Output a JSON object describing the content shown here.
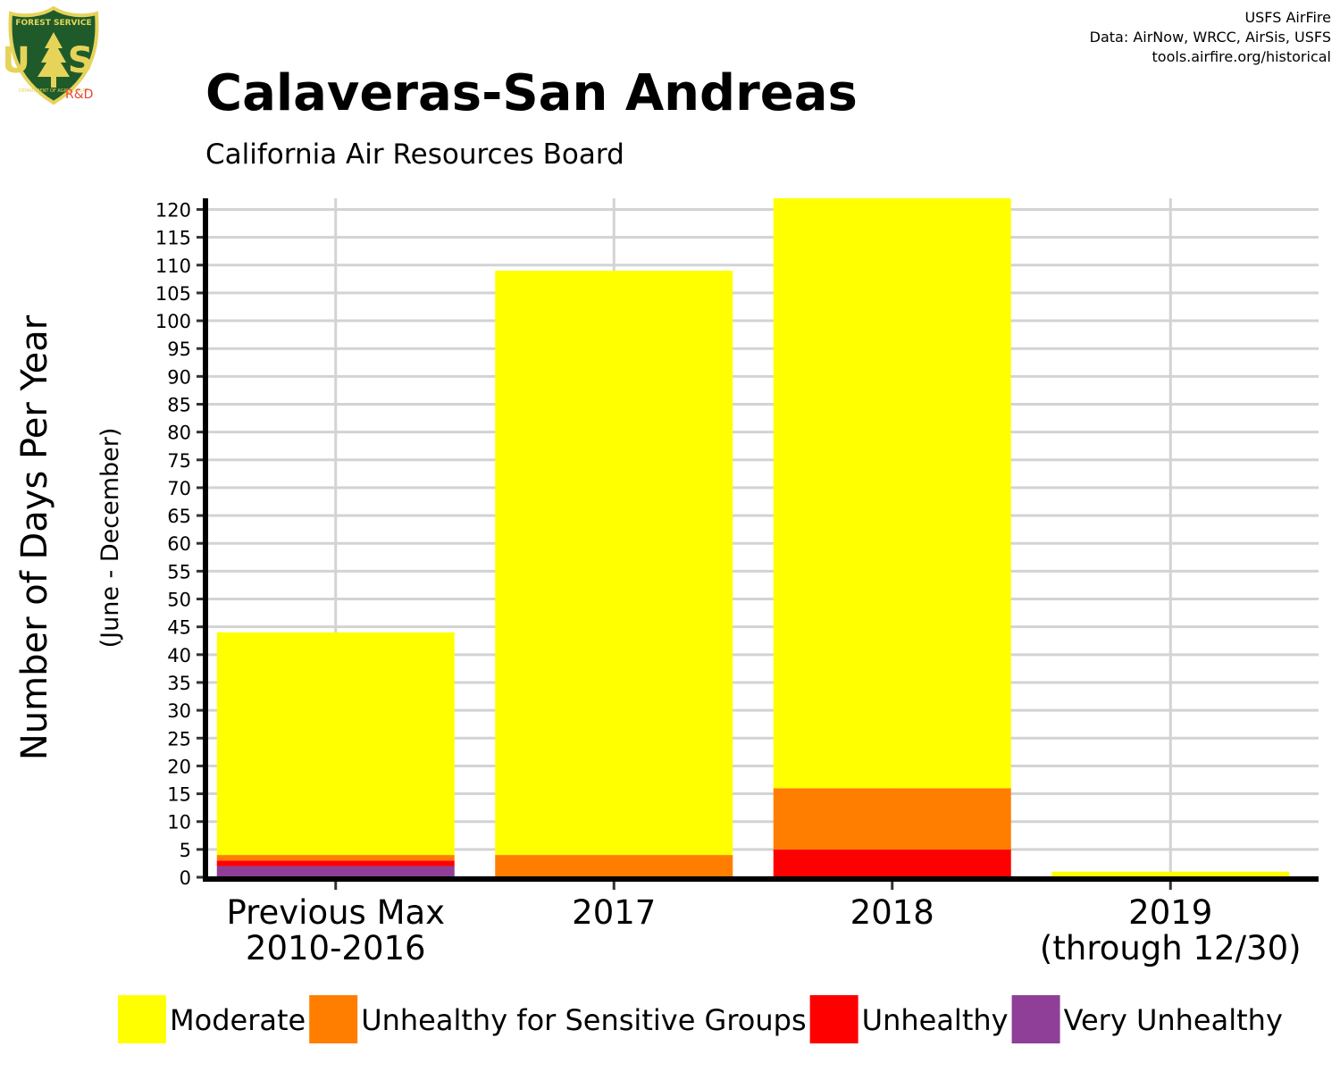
{
  "logo": {
    "name": "forest-service-shield",
    "top_text": "FOREST SERVICE",
    "letters": "U S",
    "bottom_text": "DEPARTMENT OF AGRICULTURE",
    "tag": "R&D",
    "colors": {
      "shield": "#1f5b2a",
      "border": "#e6d35a",
      "tag": "#e8483b"
    }
  },
  "credits": {
    "line1": "USFS AirFire",
    "line2": "Data: AirNow, WRCC, AirSis, USFS",
    "line3": "tools.airfire.org/historical"
  },
  "chart_data": {
    "type": "bar",
    "stacked": true,
    "title": "Calaveras-San Andreas",
    "subtitle": "California Air Resources Board",
    "ylabel": "Number of Days Per Year",
    "ylabel_sub": "(June - December)",
    "xlabel": "",
    "categories": [
      [
        "Previous Max",
        "2010-2016"
      ],
      [
        "2017"
      ],
      [
        "2018"
      ],
      [
        "2019",
        "(through 12/30)"
      ]
    ],
    "series": [
      {
        "name": "Very Unhealthy",
        "color": "#8f3f97",
        "values": [
          2,
          0,
          0,
          0
        ]
      },
      {
        "name": "Unhealthy",
        "color": "#ff0000",
        "values": [
          1,
          0,
          5,
          0
        ]
      },
      {
        "name": "Unhealthy for Sensitive Groups",
        "color": "#ff7e00",
        "values": [
          1,
          4,
          11,
          0
        ]
      },
      {
        "name": "Moderate",
        "color": "#ffff00",
        "values": [
          40,
          105,
          106,
          1
        ]
      }
    ],
    "legend_order": [
      "Moderate",
      "Unhealthy for Sensitive Groups",
      "Unhealthy",
      "Very Unhealthy"
    ],
    "ylim": [
      0,
      122
    ],
    "yticks": [
      0,
      5,
      10,
      15,
      20,
      25,
      30,
      35,
      40,
      45,
      50,
      55,
      60,
      65,
      70,
      75,
      80,
      85,
      90,
      95,
      100,
      105,
      110,
      115,
      120
    ],
    "grid": true,
    "legend_position": "bottom"
  }
}
